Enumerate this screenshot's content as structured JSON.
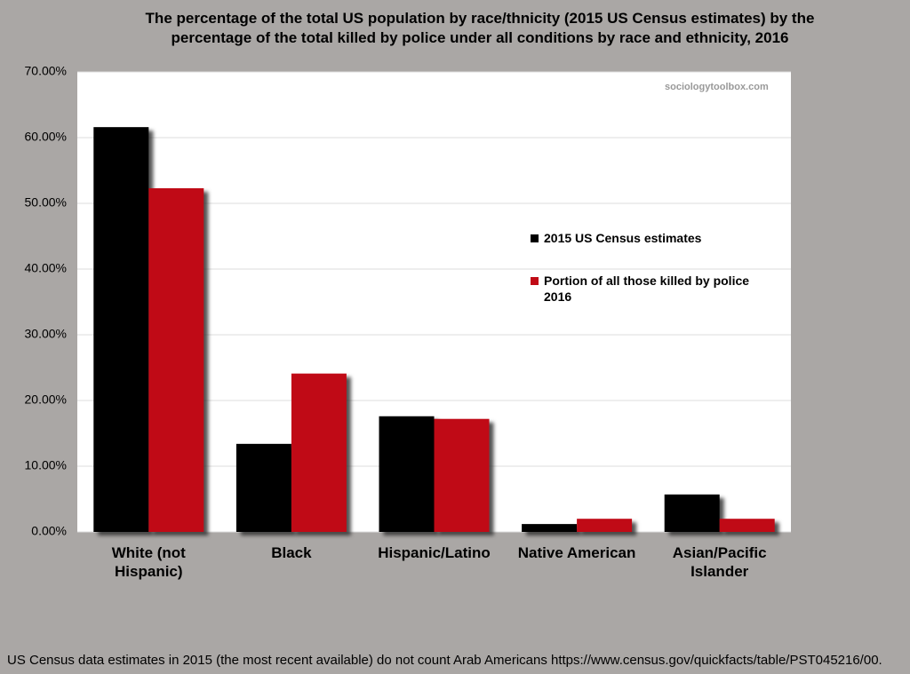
{
  "chart_data": {
    "type": "bar",
    "title": "The percentage of the total US population by race/thnicity (2015 US Census estimates) by the percentage of the total killed by police under all conditions by race and ethnicity, 2016",
    "watermark": "sociologytoolbox.com",
    "footnote": "US Census data estimates in 2015 (the most recent available) do not count Arab Americans https://www.census.gov/quickfacts/table/PST045216/00.",
    "categories": [
      "White (not Hispanic)",
      "Black",
      "Hispanic/Latino",
      "Native American",
      "Asian/Pacific Islander"
    ],
    "series": [
      {
        "name": "2015 US Census estimates",
        "color": "#000000",
        "values": [
          61.6,
          13.4,
          17.6,
          1.2,
          5.7
        ]
      },
      {
        "name": "Portion of all those killed by police 2016",
        "color": "#c00a16",
        "values": [
          52.3,
          24.1,
          17.2,
          2.0,
          2.0
        ]
      }
    ],
    "ylim": [
      0,
      70
    ],
    "yticks": [
      {
        "value": 0,
        "label": "0.00%"
      },
      {
        "value": 10,
        "label": "10.00%"
      },
      {
        "value": 20,
        "label": "20.00%"
      },
      {
        "value": 30,
        "label": "30.00%"
      },
      {
        "value": 40,
        "label": "40.00%"
      },
      {
        "value": 50,
        "label": "50.00%"
      },
      {
        "value": 60,
        "label": "60.00%"
      },
      {
        "value": 70,
        "label": "70.00%"
      }
    ],
    "grid": true,
    "legend": "right"
  }
}
